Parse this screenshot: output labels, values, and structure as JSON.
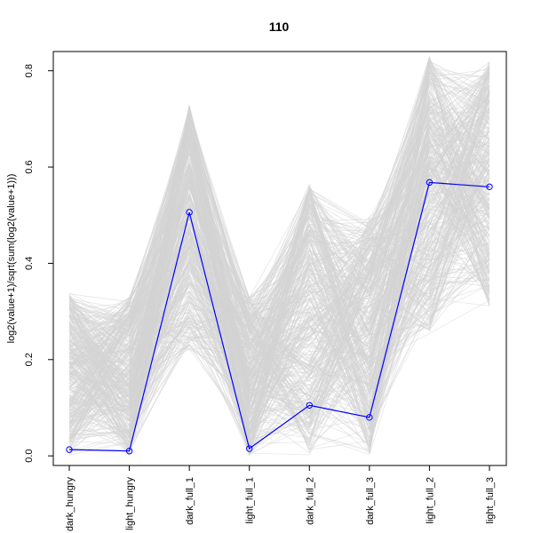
{
  "chart_data": {
    "type": "line",
    "title": "110",
    "xlabel": "",
    "ylabel": "log2(value+1)/sqrt(sum(log2(value+1)))",
    "categories": [
      "dark_hungry",
      "light_hungry",
      "dark_full_1",
      "light_full_1",
      "dark_full_2",
      "dark_full_3",
      "light_full_2",
      "light_full_3"
    ],
    "tick_labels": [
      "dark_hungry",
      "light_hungry",
      "dark_full_1",
      "light_full_1",
      "dark_full_2",
      "dark_full_3",
      "light_full_2",
      "light_full_3"
    ],
    "ylim": [
      -0.02,
      0.84
    ],
    "yticks": [
      0.0,
      0.2,
      0.4,
      0.6,
      0.8
    ],
    "ytick_labels": [
      "0.0",
      "0.2",
      "0.4",
      "0.6",
      "0.8"
    ],
    "grid": false,
    "background_series": {
      "color": "#d3d3d3",
      "description_count": 400,
      "ranges": [
        [
          0.0,
          0.34
        ],
        [
          0.0,
          0.33
        ],
        [
          0.22,
          0.73
        ],
        [
          0.0,
          0.33
        ],
        [
          0.0,
          0.57
        ],
        [
          0.0,
          0.5
        ],
        [
          0.25,
          0.83
        ],
        [
          0.31,
          0.82
        ]
      ]
    },
    "series": [
      {
        "color": "#0000ff",
        "values": [
          0.013,
          0.01,
          0.506,
          0.015,
          0.105,
          0.08,
          0.568,
          0.559
        ]
      }
    ]
  }
}
